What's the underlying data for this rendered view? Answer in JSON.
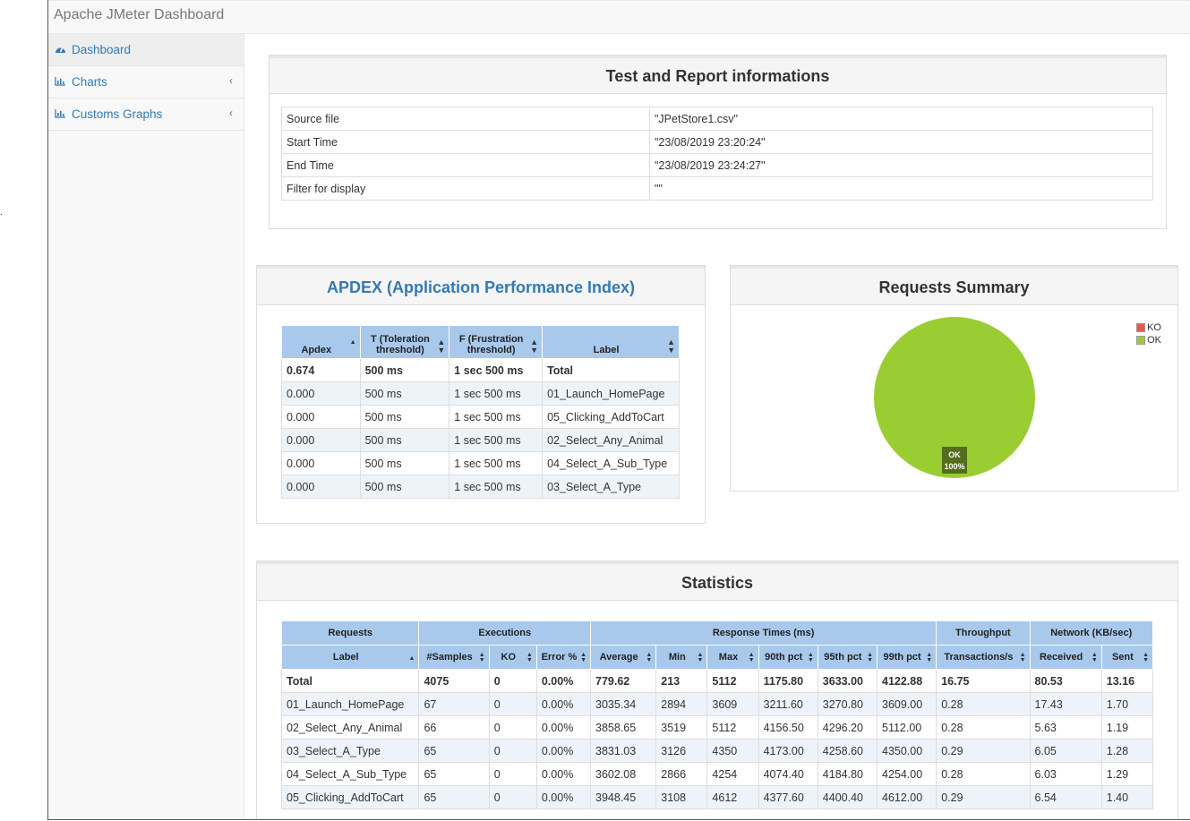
{
  "app": {
    "title": "Apache JMeter Dashboard"
  },
  "sidebar": {
    "items": [
      {
        "label": "Dashboard",
        "icon": "dashboard-icon"
      },
      {
        "label": "Charts",
        "icon": "bar-chart-icon"
      },
      {
        "label": "Customs Graphs",
        "icon": "bar-chart-icon"
      }
    ]
  },
  "info_panel": {
    "title": "Test and Report informations",
    "rows": [
      {
        "key": "Source file",
        "value": "\"JPetStore1.csv\""
      },
      {
        "key": "Start Time",
        "value": "\"23/08/2019 23:20:24\""
      },
      {
        "key": "End Time",
        "value": "\"23/08/2019 23:24:27\""
      },
      {
        "key": "Filter for display",
        "value": "\"\""
      }
    ]
  },
  "apdex": {
    "title": "APDEX (Application Performance Index)",
    "headers": [
      "Apdex",
      "T (Toleration threshold)",
      "F (Frustration threshold)",
      "Label"
    ],
    "rows": [
      [
        "0.674",
        "500 ms",
        "1 sec 500 ms",
        "Total"
      ],
      [
        "0.000",
        "500 ms",
        "1 sec 500 ms",
        "01_Launch_HomePage"
      ],
      [
        "0.000",
        "500 ms",
        "1 sec 500 ms",
        "05_Clicking_AddToCart"
      ],
      [
        "0.000",
        "500 ms",
        "1 sec 500 ms",
        "02_Select_Any_Animal"
      ],
      [
        "0.000",
        "500 ms",
        "1 sec 500 ms",
        "04_Select_A_Sub_Type"
      ],
      [
        "0.000",
        "500 ms",
        "1 sec 500 ms",
        "03_Select_A_Type"
      ]
    ]
  },
  "summary": {
    "title": "Requests Summary",
    "legend": [
      {
        "label": "KO",
        "color": "#e8584a"
      },
      {
        "label": "OK",
        "color": "#9acd32"
      }
    ],
    "slice_label": "OK",
    "slice_pct": "100%"
  },
  "chart_data": {
    "type": "pie",
    "categories": [
      "KO",
      "OK"
    ],
    "values": [
      0,
      100
    ],
    "colors": [
      "#e8584a",
      "#9acd32"
    ],
    "legend": "top-right"
  },
  "statistics": {
    "title": "Statistics",
    "group_headers": [
      "Requests",
      "Executions",
      "Response Times (ms)",
      "Throughput",
      "Network (KB/sec)"
    ],
    "columns": [
      "Label",
      "#Samples",
      "KO",
      "Error %",
      "Average",
      "Min",
      "Max",
      "90th pct",
      "95th pct",
      "99th pct",
      "Transactions/s",
      "Received",
      "Sent"
    ],
    "rows": [
      [
        "Total",
        "4075",
        "0",
        "0.00%",
        "779.62",
        "213",
        "5112",
        "1175.80",
        "3633.00",
        "4122.88",
        "16.75",
        "80.53",
        "13.16"
      ],
      [
        "01_Launch_HomePage",
        "67",
        "0",
        "0.00%",
        "3035.34",
        "2894",
        "3609",
        "3211.60",
        "3270.80",
        "3609.00",
        "0.28",
        "17.43",
        "1.70"
      ],
      [
        "02_Select_Any_Animal",
        "66",
        "0",
        "0.00%",
        "3858.65",
        "3519",
        "5112",
        "4156.50",
        "4296.20",
        "5112.00",
        "0.28",
        "5.63",
        "1.19"
      ],
      [
        "03_Select_A_Type",
        "65",
        "0",
        "0.00%",
        "3831.03",
        "3126",
        "4350",
        "4173.00",
        "4258.60",
        "4350.00",
        "0.29",
        "6.05",
        "1.28"
      ],
      [
        "04_Select_A_Sub_Type",
        "65",
        "0",
        "0.00%",
        "3602.08",
        "2866",
        "4254",
        "4074.40",
        "4184.80",
        "4254.00",
        "0.28",
        "6.03",
        "1.29"
      ],
      [
        "05_Clicking_AddToCart",
        "65",
        "0",
        "0.00%",
        "3948.45",
        "3108",
        "4612",
        "4377.60",
        "4400.40",
        "4612.00",
        "0.29",
        "6.54",
        "1.40"
      ]
    ]
  }
}
